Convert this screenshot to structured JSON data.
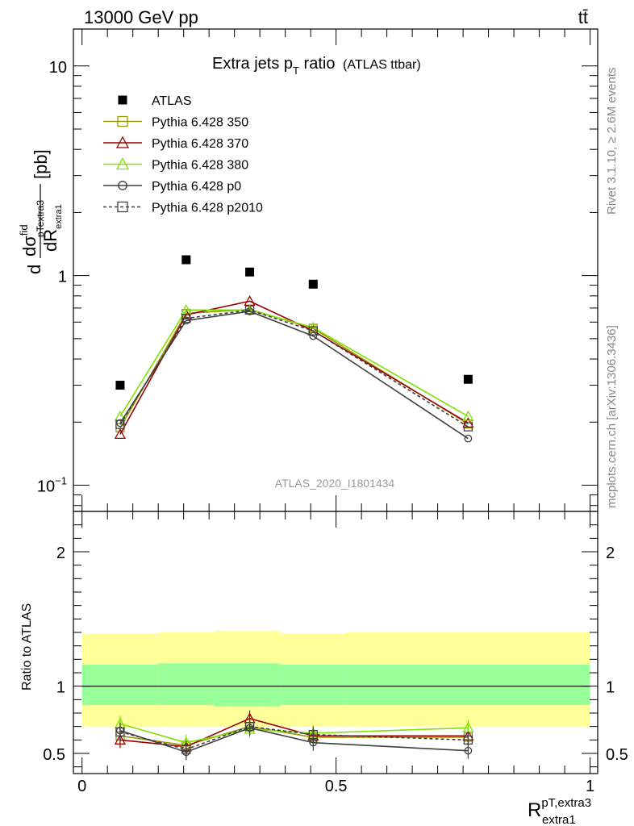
{
  "header": {
    "left": "13000 GeV pp",
    "right": "tt̄"
  },
  "side_labels": {
    "rivet": "Rivet 3.1.10, ≥ 2.6M events",
    "mcplots": "mcplots.cern.ch [arXiv:1306.3436]"
  },
  "watermark": "ATLAS_2020_I1801434",
  "chart_data": [
    {
      "type": "line",
      "panel": "main",
      "title": "Extra jets p",
      "title_sub": "T",
      "title_rest": " ratio",
      "title_note": "(ATLAS ttbar)",
      "ylabel": "dσ/dR [pb]",
      "ylabel_parts": {
        "num": "dσ",
        "num_sup": "fid",
        "num_sub": "pTextra3",
        "den": "dR",
        "den_sub": "extra1",
        "unit": "[pb]"
      },
      "yscale": "log",
      "ylim": [
        0.075,
        15
      ],
      "xlim": [
        -0.017,
        1.015
      ],
      "yticks": [
        {
          "v": 0.1,
          "base": "10",
          "exp": "−1"
        },
        {
          "v": 1,
          "label": "1"
        },
        {
          "v": 10,
          "label": "10"
        }
      ],
      "x": [
        0.075,
        0.205,
        0.33,
        0.455,
        0.76
      ],
      "legend_position": "top-left",
      "series": [
        {
          "name": "ATLAS",
          "marker": "filled-square",
          "color": "#000000",
          "line": "none",
          "values": [
            0.3,
            1.19,
            1.04,
            0.91,
            0.32
          ]
        },
        {
          "name": "Pythia 6.428 350",
          "marker": "open-square",
          "color": "#999900",
          "line": "solid",
          "values": [
            0.188,
            0.66,
            0.69,
            0.56,
            0.196
          ]
        },
        {
          "name": "Pythia 6.428 370",
          "marker": "open-triangle",
          "color": "#990000",
          "line": "solid",
          "values": [
            0.175,
            0.65,
            0.755,
            0.545,
            0.198
          ]
        },
        {
          "name": "Pythia 6.428 380",
          "marker": "open-triangle",
          "color": "#80e000",
          "line": "solid",
          "values": [
            0.213,
            0.685,
            0.685,
            0.565,
            0.213
          ]
        },
        {
          "name": "Pythia 6.428 p0",
          "marker": "open-circle",
          "color": "#404040",
          "line": "solid",
          "values": [
            0.198,
            0.61,
            0.675,
            0.515,
            0.167
          ]
        },
        {
          "name": "Pythia 6.428 p2010",
          "marker": "open-square",
          "color": "#404040",
          "line": "dashed",
          "values": [
            0.195,
            0.625,
            0.685,
            0.545,
            0.19
          ]
        }
      ]
    },
    {
      "type": "line",
      "panel": "ratio",
      "ylabel": "Ratio to ATLAS",
      "xlabel": "R",
      "xlabel_sup": "pT,extra3",
      "xlabel_sub": "extra1",
      "ylim": [
        0.35,
        2.3
      ],
      "xlim": [
        -0.017,
        1.015
      ],
      "yticks": [
        0.5,
        1,
        2
      ],
      "xticks": [
        {
          "v": 0,
          "label": "0"
        },
        {
          "v": 0.5,
          "label": "0.5"
        },
        {
          "v": 1,
          "label": "1"
        }
      ],
      "bins": [
        0,
        0.15,
        0.26,
        0.39,
        0.52,
        1.0
      ],
      "band_yellow": {
        "color": "#ffff99",
        "lo": [
          0.7,
          0.7,
          0.7,
          0.7,
          0.7
        ],
        "hi": [
          1.39,
          1.4,
          1.41,
          1.39,
          1.4
        ]
      },
      "band_green": {
        "color": "#99ff99",
        "lo": [
          0.86,
          0.86,
          0.85,
          0.86,
          0.86
        ],
        "hi": [
          1.16,
          1.17,
          1.17,
          1.16,
          1.16
        ]
      },
      "x": [
        0.075,
        0.205,
        0.33,
        0.455,
        0.76
      ],
      "series": [
        {
          "name": "Pythia 6.428 350",
          "values": [
            0.63,
            0.56,
            0.7,
            0.62,
            0.62
          ]
        },
        {
          "name": "Pythia 6.428 370",
          "values": [
            0.6,
            0.55,
            0.76,
            0.63,
            0.63
          ]
        },
        {
          "name": "Pythia 6.428 380",
          "values": [
            0.72,
            0.58,
            0.68,
            0.65,
            0.69
          ]
        },
        {
          "name": "Pythia 6.428 p0",
          "values": [
            0.67,
            0.51,
            0.69,
            0.58,
            0.52
          ]
        },
        {
          "name": "Pythia 6.428 p2010",
          "values": [
            0.66,
            0.53,
            0.7,
            0.64,
            0.6
          ]
        }
      ]
    }
  ]
}
